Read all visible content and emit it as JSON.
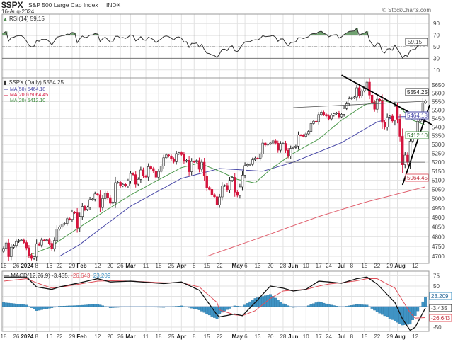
{
  "header": {
    "symbol": "$SPX",
    "name": "S&P 500 Large Cap Index",
    "exchange": "INDX",
    "date": "16-Aug-2024",
    "watermark": "© StockCharts.com"
  },
  "rsi_panel": {
    "legend": "RSI(14) 59.15",
    "value_tag": "59.15",
    "ticks": [
      90,
      70,
      50,
      30,
      10
    ],
    "overbought": 70,
    "oversold": 30,
    "midline": 50,
    "ylim": [
      0,
      105
    ]
  },
  "price_panel": {
    "legend_price": "$SPX (Daily) 5554.25",
    "legend_ma50": "MA(50) 5464.18",
    "legend_ma200": "MA(200) 5064.45",
    "legend_ma20": "MA(20) 5412.10",
    "tag_price": "5554.25",
    "tag_ma50": "5464.18",
    "tag_ma20": "5412.10",
    "tag_ma200": "5064.45",
    "ticks": [
      5650,
      5600,
      5550,
      5500,
      5450,
      5400,
      5350,
      5300,
      5250,
      5200,
      5150,
      5100,
      5050,
      5000,
      4950,
      4900,
      4850,
      4800,
      4750,
      4700
    ],
    "scale": "log",
    "ylim": [
      4660,
      5710
    ]
  },
  "macd_panel": {
    "legend_name": "MACD(12,26,9)",
    "legend_macd": "-3.435",
    "legend_signal": "-26.643",
    "legend_hist": "23.209",
    "tag_hist": "23.209",
    "tag_macd": "-3.435",
    "tag_signal": "-26.643",
    "ticks": [
      75,
      50,
      -50
    ]
  },
  "x_axis": {
    "labels": [
      {
        "text": "18",
        "date": "12-18",
        "bold": false
      },
      {
        "text": "26",
        "date": "12-26",
        "bold": false
      },
      {
        "text": "2024",
        "date": "01-02",
        "bold": true
      },
      {
        "text": "8",
        "date": "01-08",
        "bold": false
      },
      {
        "text": "16",
        "date": "01-16",
        "bold": false
      },
      {
        "text": "22",
        "date": "01-22",
        "bold": false
      },
      {
        "text": "29",
        "date": "01-29",
        "bold": false
      },
      {
        "text": "Feb",
        "date": "02-01",
        "bold": true
      },
      {
        "text": "12",
        "date": "02-12",
        "bold": false
      },
      {
        "text": "20",
        "date": "02-20",
        "bold": false
      },
      {
        "text": "26",
        "date": "02-26",
        "bold": false
      },
      {
        "text": "Mar",
        "date": "03-01",
        "bold": true
      },
      {
        "text": "11",
        "date": "03-11",
        "bold": false
      },
      {
        "text": "18",
        "date": "03-18",
        "bold": false
      },
      {
        "text": "25",
        "date": "03-25",
        "bold": false
      },
      {
        "text": "Apr",
        "date": "04-01",
        "bold": true
      },
      {
        "text": "8",
        "date": "04-08",
        "bold": false
      },
      {
        "text": "15",
        "date": "04-15",
        "bold": false
      },
      {
        "text": "22",
        "date": "04-22",
        "bold": false
      },
      {
        "text": "May",
        "date": "05-01",
        "bold": true
      },
      {
        "text": "6",
        "date": "05-06",
        "bold": false
      },
      {
        "text": "13",
        "date": "05-13",
        "bold": false
      },
      {
        "text": "20",
        "date": "05-20",
        "bold": false
      },
      {
        "text": "28",
        "date": "05-28",
        "bold": false
      },
      {
        "text": "Jun",
        "date": "06-03",
        "bold": true
      },
      {
        "text": "10",
        "date": "06-10",
        "bold": false
      },
      {
        "text": "17",
        "date": "06-17",
        "bold": false
      },
      {
        "text": "24",
        "date": "06-24",
        "bold": false
      },
      {
        "text": "Jul",
        "date": "07-01",
        "bold": true
      },
      {
        "text": "8",
        "date": "07-08",
        "bold": false
      },
      {
        "text": "15",
        "date": "07-15",
        "bold": false
      },
      {
        "text": "22",
        "date": "07-22",
        "bold": false
      },
      {
        "text": "29",
        "date": "07-29",
        "bold": false
      },
      {
        "text": "Aug",
        "date": "08-01",
        "bold": true
      },
      {
        "text": "12",
        "date": "08-12",
        "bold": false
      }
    ]
  },
  "colors": {
    "up_candle": "#ffffff",
    "down_candle": "#d4143c",
    "ma50": "#4a4aa8",
    "ma200": "#e0606e",
    "ma20": "#4e9a4e",
    "macd": "#111111",
    "signal": "#e0505a",
    "histogram": "#3f93c4",
    "rsi": "#333333",
    "rsi_fill": "#4e8a4e",
    "trendline": "#000000"
  },
  "chart_data": {
    "type": "candlestick",
    "title": "$SPX S&P 500 Large Cap Index INDX",
    "dates": [
      "12-18",
      "12-19",
      "12-20",
      "12-21",
      "12-22",
      "12-26",
      "12-27",
      "12-28",
      "12-29",
      "01-02",
      "01-03",
      "01-04",
      "01-05",
      "01-08",
      "01-09",
      "01-10",
      "01-11",
      "01-12",
      "01-16",
      "01-17",
      "01-18",
      "01-19",
      "01-22",
      "01-23",
      "01-24",
      "01-25",
      "01-26",
      "01-29",
      "01-30",
      "01-31",
      "02-01",
      "02-02",
      "02-05",
      "02-06",
      "02-07",
      "02-08",
      "02-09",
      "02-12",
      "02-13",
      "02-14",
      "02-15",
      "02-16",
      "02-20",
      "02-21",
      "02-22",
      "02-23",
      "02-26",
      "02-27",
      "02-28",
      "02-29",
      "03-01",
      "03-04",
      "03-05",
      "03-06",
      "03-07",
      "03-08",
      "03-11",
      "03-12",
      "03-13",
      "03-14",
      "03-15",
      "03-18",
      "03-19",
      "03-20",
      "03-21",
      "03-22",
      "03-25",
      "03-26",
      "03-27",
      "03-28",
      "04-01",
      "04-02",
      "04-03",
      "04-04",
      "04-05",
      "04-08",
      "04-09",
      "04-10",
      "04-11",
      "04-12",
      "04-15",
      "04-16",
      "04-17",
      "04-18",
      "04-19",
      "04-22",
      "04-23",
      "04-24",
      "04-25",
      "04-26",
      "04-29",
      "04-30",
      "05-01",
      "05-02",
      "05-03",
      "05-06",
      "05-07",
      "05-08",
      "05-09",
      "05-10",
      "05-13",
      "05-14",
      "05-15",
      "05-16",
      "05-17",
      "05-20",
      "05-21",
      "05-22",
      "05-23",
      "05-24",
      "05-28",
      "05-29",
      "05-30",
      "05-31",
      "06-03",
      "06-04",
      "06-05",
      "06-06",
      "06-07",
      "06-10",
      "06-11",
      "06-12",
      "06-13",
      "06-14",
      "06-17",
      "06-18",
      "06-20",
      "06-21",
      "06-24",
      "06-25",
      "06-26",
      "06-27",
      "06-28",
      "07-01",
      "07-02",
      "07-03",
      "07-05",
      "07-08",
      "07-09",
      "07-10",
      "07-11",
      "07-12",
      "07-15",
      "07-16",
      "07-17",
      "07-18",
      "07-19",
      "07-22",
      "07-23",
      "07-24",
      "07-25",
      "07-26",
      "07-29",
      "07-30",
      "07-31",
      "08-01",
      "08-02",
      "08-05",
      "08-06",
      "08-07",
      "08-08",
      "08-09",
      "08-12",
      "08-13",
      "08-14",
      "08-15",
      "08-16"
    ],
    "close": [
      4740,
      4768,
      4698,
      4746,
      4755,
      4775,
      4781,
      4783,
      4770,
      4743,
      4705,
      4689,
      4697,
      4764,
      4757,
      4783,
      4781,
      4784,
      4766,
      4739,
      4781,
      4840,
      4851,
      4865,
      4869,
      4894,
      4891,
      4928,
      4925,
      4846,
      4906,
      4959,
      4943,
      4954,
      4995,
      4998,
      5026,
      5022,
      4953,
      5001,
      5030,
      5006,
      4976,
      4982,
      5087,
      5089,
      5070,
      5078,
      5070,
      5096,
      5137,
      5131,
      5079,
      5105,
      5157,
      5124,
      5118,
      5175,
      5165,
      5150,
      5117,
      5149,
      5179,
      5225,
      5241,
      5234,
      5218,
      5203,
      5248,
      5254,
      5243,
      5205,
      5211,
      5147,
      5204,
      5202,
      5209,
      5161,
      5200,
      5123,
      5061,
      5051,
      5022,
      5011,
      4967,
      5010,
      5070,
      5072,
      5048,
      5100,
      5116,
      5036,
      5018,
      5064,
      5128,
      5181,
      5187,
      5188,
      5214,
      5223,
      5221,
      5247,
      5308,
      5297,
      5303,
      5308,
      5321,
      5307,
      5268,
      5305,
      5306,
      5267,
      5235,
      5278,
      5283,
      5291,
      5354,
      5353,
      5347,
      5361,
      5375,
      5421,
      5434,
      5431,
      5473,
      5487,
      5473,
      5465,
      5448,
      5469,
      5478,
      5483,
      5460,
      5475,
      5509,
      5537,
      5567,
      5572,
      5577,
      5633,
      5585,
      5615,
      5631,
      5667,
      5589,
      5545,
      5505,
      5564,
      5556,
      5427,
      5399,
      5459,
      5464,
      5436,
      5522,
      5446,
      5347,
      5186,
      5240,
      5199,
      5319,
      5344,
      5344,
      5434,
      5455,
      5543,
      5554.25
    ],
    "ma50": [
      [
        "01-22",
        4700
      ],
      [
        "02-01",
        4760
      ],
      [
        "03-01",
        4960
      ],
      [
        "04-01",
        5110
      ],
      [
        "04-22",
        5165
      ],
      [
        "05-15",
        5150
      ],
      [
        "06-03",
        5200
      ],
      [
        "07-01",
        5310
      ],
      [
        "07-22",
        5430
      ],
      [
        "08-01",
        5460
      ],
      [
        "08-16",
        5464.18
      ]
    ],
    "ma200": [
      [
        "04-15",
        4700
      ],
      [
        "05-15",
        4800
      ],
      [
        "06-17",
        4905
      ],
      [
        "07-15",
        4980
      ],
      [
        "08-16",
        5064.45
      ]
    ],
    "ma20": [
      [
        "01-02",
        4700
      ],
      [
        "01-16",
        4745
      ],
      [
        "02-01",
        4850
      ],
      [
        "03-01",
        5020
      ],
      [
        "04-01",
        5170
      ],
      [
        "04-10",
        5195
      ],
      [
        "04-22",
        5150
      ],
      [
        "05-01",
        5105
      ],
      [
        "05-10",
        5085
      ],
      [
        "05-20",
        5160
      ],
      [
        "06-03",
        5250
      ],
      [
        "06-17",
        5330
      ],
      [
        "07-01",
        5440
      ],
      [
        "07-15",
        5530
      ],
      [
        "07-24",
        5560
      ],
      [
        "08-01",
        5530
      ],
      [
        "08-09",
        5440
      ],
      [
        "08-16",
        5412.1
      ]
    ],
    "macd": [
      [
        "12-18",
        72
      ],
      [
        "01-02",
        72
      ],
      [
        "01-08",
        48
      ],
      [
        "01-17",
        42
      ],
      [
        "01-22",
        48
      ],
      [
        "02-01",
        58
      ],
      [
        "02-12",
        68
      ],
      [
        "02-20",
        60
      ],
      [
        "03-01",
        62
      ],
      [
        "03-20",
        56
      ],
      [
        "04-01",
        60
      ],
      [
        "04-10",
        40
      ],
      [
        "04-19",
        -20
      ],
      [
        "04-22",
        -25
      ],
      [
        "04-30",
        -18
      ],
      [
        "05-03",
        -22
      ],
      [
        "05-10",
        10
      ],
      [
        "05-20",
        50
      ],
      [
        "05-28",
        45
      ],
      [
        "06-03",
        38
      ],
      [
        "06-10",
        42
      ],
      [
        "06-17",
        62
      ],
      [
        "06-24",
        60
      ],
      [
        "07-01",
        57
      ],
      [
        "07-10",
        68
      ],
      [
        "07-16",
        72
      ],
      [
        "07-22",
        55
      ],
      [
        "07-31",
        10
      ],
      [
        "08-05",
        -30
      ],
      [
        "08-08",
        -58
      ],
      [
        "08-12",
        -50
      ],
      [
        "08-16",
        -3.435
      ]
    ],
    "signal": [
      [
        "12-18",
        62
      ],
      [
        "01-02",
        68
      ],
      [
        "01-08",
        58
      ],
      [
        "01-17",
        45
      ],
      [
        "01-22",
        47
      ],
      [
        "02-01",
        55
      ],
      [
        "02-12",
        62
      ],
      [
        "02-20",
        63
      ],
      [
        "03-01",
        62
      ],
      [
        "03-20",
        58
      ],
      [
        "04-01",
        58
      ],
      [
        "04-10",
        48
      ],
      [
        "04-19",
        10
      ],
      [
        "04-22",
        -8
      ],
      [
        "04-30",
        -20
      ],
      [
        "05-03",
        -22
      ],
      [
        "05-10",
        -10
      ],
      [
        "05-20",
        20
      ],
      [
        "05-28",
        38
      ],
      [
        "06-03",
        40
      ],
      [
        "06-10",
        42
      ],
      [
        "06-17",
        50
      ],
      [
        "06-24",
        55
      ],
      [
        "07-01",
        58
      ],
      [
        "07-10",
        63
      ],
      [
        "07-16",
        68
      ],
      [
        "07-22",
        68
      ],
      [
        "07-31",
        45
      ],
      [
        "08-05",
        15
      ],
      [
        "08-08",
        -15
      ],
      [
        "08-12",
        -28
      ],
      [
        "08-16",
        -26.643
      ]
    ],
    "trendlines": [
      {
        "from": [
          "07-01",
          5710
        ],
        "to": [
          "08-16",
          5414
        ]
      },
      {
        "from": [
          "08-05",
          5075
        ],
        "to": [
          "08-16",
          5530
        ]
      },
      {
        "from": [
          "05-29",
          5200
        ],
        "to": [
          "08-16",
          5200
        ]
      },
      {
        "from": [
          "06-03",
          5514
        ],
        "to": [
          "08-16",
          5552
        ]
      }
    ]
  }
}
